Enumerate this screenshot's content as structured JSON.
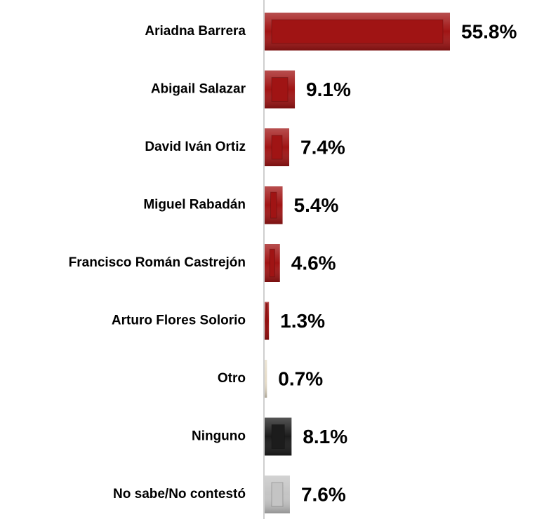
{
  "chart_data": {
    "type": "bar",
    "orientation": "horizontal",
    "categories": [
      "Ariadna Barrera",
      "Abigail Salazar",
      "David Iván Ortiz",
      "Miguel Rabadán",
      "Francisco Román Castrejón",
      "Arturo Flores Solorio",
      "Otro",
      "Ninguno",
      "No sabe/No contestó"
    ],
    "values": [
      55.8,
      9.1,
      7.4,
      5.4,
      4.6,
      1.3,
      0.7,
      8.1,
      7.6
    ],
    "value_labels": [
      "55.8%",
      "9.1%",
      "7.4%",
      "5.4%",
      "4.6%",
      "1.3%",
      "0.7%",
      "8.1%",
      "7.6%"
    ],
    "colors": [
      "#a01414",
      "#a01414",
      "#a01414",
      "#a01414",
      "#a01414",
      "#a01414",
      "#e6dcc8",
      "#1c1c1c",
      "#c4c4c4"
    ]
  }
}
